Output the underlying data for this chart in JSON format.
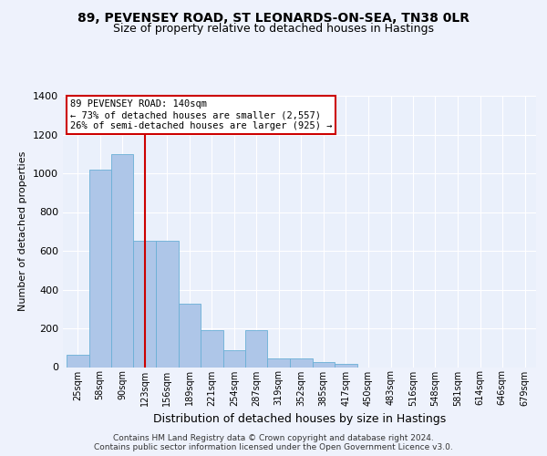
{
  "title_line1": "89, PEVENSEY ROAD, ST LEONARDS-ON-SEA, TN38 0LR",
  "title_line2": "Size of property relative to detached houses in Hastings",
  "xlabel": "Distribution of detached houses by size in Hastings",
  "ylabel": "Number of detached properties",
  "bin_labels": [
    "25sqm",
    "58sqm",
    "90sqm",
    "123sqm",
    "156sqm",
    "189sqm",
    "221sqm",
    "254sqm",
    "287sqm",
    "319sqm",
    "352sqm",
    "385sqm",
    "417sqm",
    "450sqm",
    "483sqm",
    "516sqm",
    "548sqm",
    "581sqm",
    "614sqm",
    "646sqm",
    "679sqm"
  ],
  "bin_edges": [
    25,
    58,
    90,
    123,
    156,
    189,
    221,
    254,
    287,
    319,
    352,
    385,
    417,
    450,
    483,
    516,
    548,
    581,
    614,
    646,
    679,
    712
  ],
  "bar_heights": [
    63,
    1020,
    1100,
    650,
    650,
    325,
    190,
    88,
    190,
    45,
    45,
    28,
    15,
    0,
    0,
    0,
    0,
    0,
    0,
    0,
    0
  ],
  "bar_color": "#aec6e8",
  "bar_edge_color": "#6aafd6",
  "vline_x": 140,
  "vline_color": "#cc0000",
  "annotation_text": "89 PEVENSEY ROAD: 140sqm\n← 73% of detached houses are smaller (2,557)\n26% of semi-detached houses are larger (925) →",
  "annotation_box_color": "#ffffff",
  "annotation_box_edge": "#cc0000",
  "ylim": [
    0,
    1400
  ],
  "yticks": [
    0,
    200,
    400,
    600,
    800,
    1000,
    1200,
    1400
  ],
  "bg_color": "#eef2fc",
  "plot_bg_color": "#eaf0fb",
  "footer": "Contains HM Land Registry data © Crown copyright and database right 2024.\nContains public sector information licensed under the Open Government Licence v3.0."
}
